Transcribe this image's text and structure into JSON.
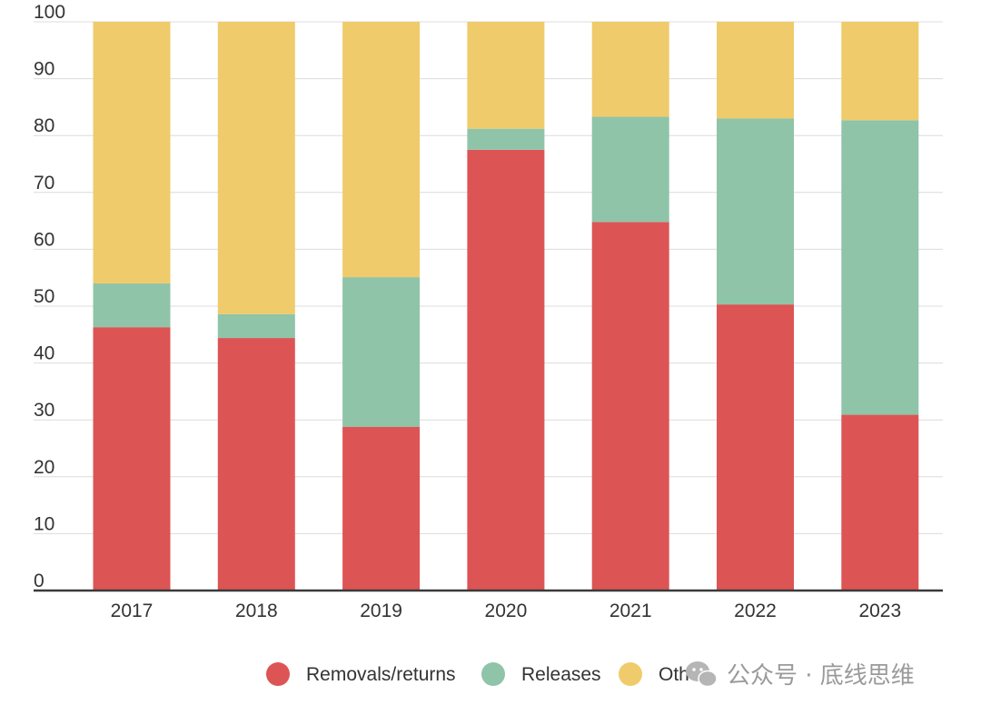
{
  "chart_data": {
    "type": "bar",
    "stacked": true,
    "title": "",
    "xlabel": "",
    "ylabel": "",
    "ylim": [
      0,
      100
    ],
    "yticks": [
      0,
      10,
      20,
      30,
      40,
      50,
      60,
      70,
      80,
      90,
      100
    ],
    "grid": true,
    "legend_position": "bottom-right",
    "categories": [
      "2017",
      "2018",
      "2019",
      "2020",
      "2021",
      "2022",
      "2023"
    ],
    "series": [
      {
        "name": "Removals/returns",
        "color": "#dd5455",
        "values": [
          46.3,
          44.4,
          28.8,
          77.5,
          64.8,
          50.3,
          30.9
        ]
      },
      {
        "name": "Releases",
        "color": "#8fc4a8",
        "values": [
          7.7,
          4.2,
          26.3,
          3.7,
          18.5,
          32.7,
          51.8
        ]
      },
      {
        "name": "Other",
        "color": "#efcb6c",
        "values": [
          46.0,
          51.4,
          44.9,
          18.8,
          16.7,
          17.0,
          17.3
        ]
      }
    ]
  },
  "watermark": {
    "icon": "wechat-icon",
    "text": "公众号 · 底线思维"
  }
}
